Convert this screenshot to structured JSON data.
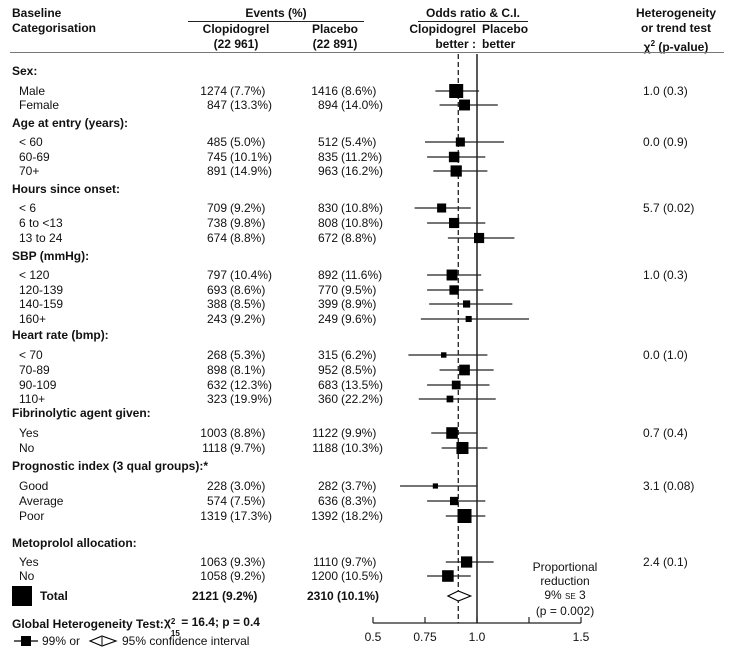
{
  "header": {
    "baseline_line1": "Baseline",
    "baseline_line2": "Categorisation",
    "events": "Events (%)",
    "clop_name": "Clopidogrel",
    "clop_n": "(22 961)",
    "plac_name": "Placebo",
    "plac_n": "(22 891)",
    "or_title": "Odds ratio & C.I.",
    "or_left1": "Clopidogrel",
    "or_left2": "better",
    "or_sep": ":",
    "or_right1": "Placebo",
    "or_right2": "better",
    "het1": "Heterogeneity",
    "het2": "or trend test",
    "het3_chi": "χ",
    "het3_sup": "2",
    "het3_rest": " (p-value)"
  },
  "groups": [
    {
      "title": "Sex:",
      "het": "1.0 (0.3)",
      "rows": [
        {
          "label": "Male",
          "clop": "1274",
          "clop_pct": "(7.7%)",
          "plac": "1416",
          "plac_pct": "(8.6%)"
        },
        {
          "label": "Female",
          "clop": "847",
          "clop_pct": "(13.3%)",
          "plac": "894",
          "plac_pct": "(14.0%)"
        }
      ]
    },
    {
      "title": "Age at entry (years):",
      "het": "0.0 (0.9)",
      "rows": [
        {
          "label": "< 60",
          "clop": "485",
          "clop_pct": "(5.0%)",
          "plac": "512",
          "plac_pct": "(5.4%)"
        },
        {
          "label": "60-69",
          "clop": "745",
          "clop_pct": "(10.1%)",
          "plac": "835",
          "plac_pct": "(11.2%)"
        },
        {
          "label": "70+",
          "clop": "891",
          "clop_pct": "(14.9%)",
          "plac": "963",
          "plac_pct": "(16.2%)"
        }
      ]
    },
    {
      "title": "Hours since onset:",
      "het": "5.7 (0.02)",
      "rows": [
        {
          "label": "< 6",
          "clop": "709",
          "clop_pct": "(9.2%)",
          "plac": "830",
          "plac_pct": "(10.8%)"
        },
        {
          "label": "6 to <13",
          "clop": "738",
          "clop_pct": "(9.8%)",
          "plac": "808",
          "plac_pct": "(10.8%)"
        },
        {
          "label": "13 to 24",
          "clop": "674",
          "clop_pct": "(8.8%)",
          "plac": "672",
          "plac_pct": "(8.8%)"
        }
      ]
    },
    {
      "title": "SBP (mmHg):",
      "het": "1.0 (0.3)",
      "rows": [
        {
          "label": "< 120",
          "clop": "797",
          "clop_pct": "(10.4%)",
          "plac": "892",
          "plac_pct": "(11.6%)"
        },
        {
          "label": "120-139",
          "clop": "693",
          "clop_pct": "(8.6%)",
          "plac": "770",
          "plac_pct": "(9.5%)"
        },
        {
          "label": "140-159",
          "clop": "388",
          "clop_pct": "(8.5%)",
          "plac": "399",
          "plac_pct": "(8.9%)"
        },
        {
          "label": "160+",
          "clop": "243",
          "clop_pct": "(9.2%)",
          "plac": "249",
          "plac_pct": "(9.6%)"
        }
      ]
    },
    {
      "title": "Heart rate (bmp):",
      "het": "0.0 (1.0)",
      "rows": [
        {
          "label": "< 70",
          "clop": "268",
          "clop_pct": "(5.3%)",
          "plac": "315",
          "plac_pct": "(6.2%)"
        },
        {
          "label": "70-89",
          "clop": "898",
          "clop_pct": "(8.1%)",
          "plac": "952",
          "plac_pct": "(8.5%)"
        },
        {
          "label": "90-109",
          "clop": "632",
          "clop_pct": "(12.3%)",
          "plac": "683",
          "plac_pct": "(13.5%)"
        },
        {
          "label": "110+",
          "clop": "323",
          "clop_pct": "(19.9%)",
          "plac": "360",
          "plac_pct": "(22.2%)"
        }
      ]
    },
    {
      "title": "Fibrinolytic agent given:",
      "het": "0.7 (0.4)",
      "rows": [
        {
          "label": "Yes",
          "clop": "1003",
          "clop_pct": "(8.8%)",
          "plac": "1122",
          "plac_pct": "(9.9%)"
        },
        {
          "label": "No",
          "clop": "1118",
          "clop_pct": "(9.7%)",
          "plac": "1188",
          "plac_pct": "(10.3%)"
        }
      ]
    },
    {
      "title": "Prognostic index (3 qual groups):*",
      "het": "3.1 (0.08)",
      "rows": [
        {
          "label": "Good",
          "clop": "228",
          "clop_pct": "(3.0%)",
          "plac": "282",
          "plac_pct": "(3.7%)"
        },
        {
          "label": "Average",
          "clop": "574",
          "clop_pct": "(7.5%)",
          "plac": "636",
          "plac_pct": "(8.3%)"
        },
        {
          "label": "Poor",
          "clop": "1319",
          "clop_pct": "(17.3%)",
          "plac": "1392",
          "plac_pct": "(18.2%)"
        }
      ]
    },
    {
      "title": "Metoprolol allocation:",
      "het": "2.4 (0.1)",
      "rows": [
        {
          "label": "Yes",
          "clop": "1063",
          "clop_pct": "(9.3%)",
          "plac": "1110",
          "plac_pct": "(9.7%)"
        },
        {
          "label": "No",
          "clop": "1058",
          "clop_pct": "(9.2%)",
          "plac": "1200",
          "plac_pct": "(10.5%)"
        }
      ]
    }
  ],
  "total": {
    "label": "Total",
    "clop": "2121 (9.2%)",
    "plac": "2310 (10.1%)"
  },
  "global_test": {
    "label": "Global Heterogeneity Test:",
    "chi": "χ",
    "sup": "2",
    "sub": "15",
    "rest": " = 16.4; p = 0.4"
  },
  "legend": {
    "square_label": "99% or",
    "diamond_label": "95% confidence interval"
  },
  "reduction": {
    "line1": "Proportional",
    "line2": "reduction",
    "line3_pre": "9% ",
    "line3_se": "SE",
    "line3_post": " 3",
    "line4": "(p = 0.002)"
  },
  "chart_data": {
    "type": "forest",
    "title": "Odds ratio & C.I.",
    "xlabel": "",
    "x_ticks": [
      0.5,
      0.75,
      1.0,
      1.25,
      1.5
    ],
    "x_tick_labels": [
      "0.5",
      "0.75",
      "1.0",
      "",
      "1.5"
    ],
    "xlim": [
      0.5,
      1.5
    ],
    "reference_line": 1.0,
    "overall_line": 0.91,
    "points": [
      {
        "group": "Sex",
        "label": "Male",
        "or": 0.9,
        "lo": 0.8,
        "hi": 1.01,
        "weight": 1.0
      },
      {
        "group": "Sex",
        "label": "Female",
        "or": 0.94,
        "lo": 0.82,
        "hi": 1.1,
        "weight": 0.72
      },
      {
        "group": "Age",
        "label": "< 60",
        "or": 0.92,
        "lo": 0.75,
        "hi": 1.13,
        "weight": 0.55
      },
      {
        "group": "Age",
        "label": "60-69",
        "or": 0.89,
        "lo": 0.76,
        "hi": 1.04,
        "weight": 0.68
      },
      {
        "group": "Age",
        "label": "70+",
        "or": 0.9,
        "lo": 0.79,
        "hi": 1.05,
        "weight": 0.75
      },
      {
        "group": "Hours",
        "label": "< 6",
        "or": 0.83,
        "lo": 0.7,
        "hi": 0.97,
        "weight": 0.55
      },
      {
        "group": "Hours",
        "label": "6 to <13",
        "or": 0.89,
        "lo": 0.76,
        "hi": 1.04,
        "weight": 0.65
      },
      {
        "group": "Hours",
        "label": "13 to 24",
        "or": 1.01,
        "lo": 0.86,
        "hi": 1.18,
        "weight": 0.65
      },
      {
        "group": "SBP",
        "label": "< 120",
        "or": 0.88,
        "lo": 0.76,
        "hi": 1.02,
        "weight": 0.72
      },
      {
        "group": "SBP",
        "label": "120-139",
        "or": 0.89,
        "lo": 0.76,
        "hi": 1.03,
        "weight": 0.58
      },
      {
        "group": "SBP",
        "label": "140-159",
        "or": 0.95,
        "lo": 0.77,
        "hi": 1.17,
        "weight": 0.38
      },
      {
        "group": "SBP",
        "label": "160+",
        "or": 0.96,
        "lo": 0.73,
        "hi": 1.25,
        "weight": 0.28
      },
      {
        "group": "Heart rate",
        "label": "< 70",
        "or": 0.84,
        "lo": 0.67,
        "hi": 1.05,
        "weight": 0.22
      },
      {
        "group": "Heart rate",
        "label": "70-89",
        "or": 0.94,
        "lo": 0.82,
        "hi": 1.08,
        "weight": 0.7
      },
      {
        "group": "Heart rate",
        "label": "90-109",
        "or": 0.9,
        "lo": 0.76,
        "hi": 1.06,
        "weight": 0.52
      },
      {
        "group": "Heart rate",
        "label": "110+",
        "or": 0.87,
        "lo": 0.72,
        "hi": 1.09,
        "weight": 0.34
      },
      {
        "group": "Fibrinolytic",
        "label": "Yes",
        "or": 0.88,
        "lo": 0.78,
        "hi": 1.0,
        "weight": 0.78
      },
      {
        "group": "Fibrinolytic",
        "label": "No",
        "or": 0.93,
        "lo": 0.83,
        "hi": 1.05,
        "weight": 0.82
      },
      {
        "group": "Prognostic",
        "label": "Good",
        "or": 0.8,
        "lo": 0.63,
        "hi": 1.0,
        "weight": 0.2
      },
      {
        "group": "Prognostic",
        "label": "Average",
        "or": 0.89,
        "lo": 0.76,
        "hi": 1.04,
        "weight": 0.48
      },
      {
        "group": "Prognostic",
        "label": "Poor",
        "or": 0.94,
        "lo": 0.85,
        "hi": 1.04,
        "weight": 1.0
      },
      {
        "group": "Metoprolol",
        "label": "Yes",
        "or": 0.95,
        "lo": 0.85,
        "hi": 1.08,
        "weight": 0.75
      },
      {
        "group": "Metoprolol",
        "label": "No",
        "or": 0.86,
        "lo": 0.76,
        "hi": 0.97,
        "weight": 0.78
      }
    ],
    "total": {
      "or": 0.91,
      "lo": 0.86,
      "hi": 0.97
    }
  }
}
